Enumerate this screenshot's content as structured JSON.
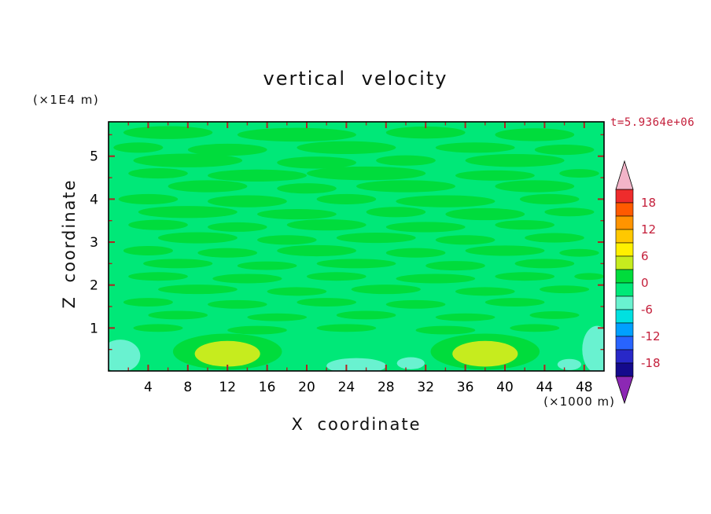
{
  "title": "vertical velocity",
  "time_label": "t=5.9364e+06",
  "axes": {
    "x_label": "X coordinate",
    "x_unit": "(×1000 m)",
    "z_label": "Z coordinate",
    "z_unit": "(×1E4 m)"
  },
  "colors": {
    "tick": "#B22222",
    "frame": "#000000",
    "tick_label": "#000000",
    "scale_label": "#C41E3A",
    "time_label": "#C41E3A",
    "title": "#111111"
  },
  "chart_data": {
    "type": "heatmap",
    "title": "vertical velocity",
    "xlabel": "X coordinate (×1000 m)",
    "ylabel": "Z coordinate (×1E4 m)",
    "time": "t=5.9364e+06",
    "x_range": [
      0,
      50
    ],
    "z_range": [
      0,
      5.8
    ],
    "x_ticks": [
      4,
      8,
      12,
      16,
      20,
      24,
      28,
      32,
      36,
      40,
      44,
      48
    ],
    "x_minor_ticks": [
      2,
      6,
      10,
      14,
      18,
      22,
      26,
      30,
      34,
      38,
      42,
      46
    ],
    "z_ticks": [
      1,
      2,
      3,
      4,
      5
    ],
    "z_minor_ticks": [
      0.5,
      1.5,
      2.5,
      3.5,
      4.5,
      5.5
    ],
    "contour_interval": 3,
    "background_value": -1.5,
    "colorbar": {
      "labels": [
        18,
        12,
        6,
        0,
        -6,
        -12,
        -18
      ],
      "value_max": 21,
      "value_min": -21,
      "over_color": "#F2B4C8",
      "under_color": "#8C28B4",
      "levels": [
        {
          "min": 18,
          "max": 21,
          "color": "#EE2C2C"
        },
        {
          "min": 15,
          "max": 18,
          "color": "#FF5A00"
        },
        {
          "min": 12,
          "max": 15,
          "color": "#FF9400"
        },
        {
          "min": 9,
          "max": 12,
          "color": "#FFC800"
        },
        {
          "min": 6,
          "max": 9,
          "color": "#FFF000"
        },
        {
          "min": 3,
          "max": 6,
          "color": "#C6EC1E"
        },
        {
          "min": 0,
          "max": 3,
          "color": "#00DC3C"
        },
        {
          "min": -3,
          "max": 0,
          "color": "#00E878"
        },
        {
          "min": -6,
          "max": -3,
          "color": "#69F2D0"
        },
        {
          "min": -9,
          "max": -6,
          "color": "#00E0E0"
        },
        {
          "min": -12,
          "max": -9,
          "color": "#00A0FF"
        },
        {
          "min": -15,
          "max": -12,
          "color": "#2864FF"
        },
        {
          "min": -18,
          "max": -15,
          "color": "#2828C8"
        },
        {
          "min": -21,
          "max": -18,
          "color": "#140A8C"
        }
      ]
    },
    "blobs": [
      [
        6,
        5.55,
        4.5,
        0.15,
        1.5
      ],
      [
        19,
        5.5,
        6,
        0.16,
        1.5
      ],
      [
        32,
        5.55,
        4,
        0.14,
        1.5
      ],
      [
        43,
        5.5,
        4,
        0.15,
        1.5
      ],
      [
        3,
        5.2,
        2.5,
        0.12,
        1.5
      ],
      [
        12,
        5.15,
        4,
        0.14,
        1.5
      ],
      [
        24,
        5.2,
        5,
        0.15,
        1.5
      ],
      [
        37,
        5.2,
        4,
        0.12,
        1.5
      ],
      [
        46,
        5.15,
        3,
        0.12,
        1.5
      ],
      [
        8,
        4.9,
        5.5,
        0.16,
        1.5
      ],
      [
        21,
        4.85,
        4,
        0.14,
        1.5
      ],
      [
        30,
        4.9,
        3,
        0.12,
        1.5
      ],
      [
        41,
        4.9,
        5,
        0.15,
        1.5
      ],
      [
        5,
        4.6,
        3,
        0.12,
        1.5
      ],
      [
        15,
        4.55,
        5,
        0.14,
        1.5
      ],
      [
        26,
        4.6,
        6,
        0.16,
        1.5
      ],
      [
        39,
        4.55,
        4,
        0.12,
        1.5
      ],
      [
        47.5,
        4.6,
        2,
        0.1,
        1.5
      ],
      [
        10,
        4.3,
        4,
        0.14,
        1.5
      ],
      [
        20,
        4.25,
        3,
        0.12,
        1.5
      ],
      [
        30,
        4.3,
        5,
        0.14,
        1.5
      ],
      [
        43,
        4.3,
        4,
        0.14,
        1.5
      ],
      [
        4,
        4.0,
        3,
        0.12,
        1.5
      ],
      [
        14,
        3.95,
        4,
        0.14,
        1.5
      ],
      [
        24,
        4.0,
        3,
        0.12,
        1.5
      ],
      [
        34,
        3.95,
        5,
        0.14,
        1.5
      ],
      [
        44.5,
        4.0,
        3,
        0.12,
        1.5
      ],
      [
        8,
        3.7,
        5,
        0.14,
        1.5
      ],
      [
        19,
        3.65,
        4,
        0.12,
        1.5
      ],
      [
        29,
        3.7,
        3,
        0.12,
        1.5
      ],
      [
        38,
        3.65,
        4,
        0.14,
        1.5
      ],
      [
        46.5,
        3.7,
        2.5,
        0.1,
        1.5
      ],
      [
        5,
        3.4,
        3,
        0.12,
        1.5
      ],
      [
        13,
        3.35,
        3,
        0.11,
        1.5
      ],
      [
        22,
        3.4,
        4,
        0.13,
        1.5
      ],
      [
        32,
        3.35,
        4,
        0.12,
        1.5
      ],
      [
        42,
        3.4,
        3,
        0.11,
        1.5
      ],
      [
        9,
        3.1,
        4,
        0.13,
        1.5
      ],
      [
        18,
        3.05,
        3,
        0.11,
        1.5
      ],
      [
        27,
        3.1,
        4,
        0.12,
        1.5
      ],
      [
        36,
        3.05,
        3,
        0.11,
        1.5
      ],
      [
        45,
        3.1,
        3,
        0.11,
        1.5
      ],
      [
        4,
        2.8,
        2.5,
        0.11,
        1.5
      ],
      [
        12,
        2.75,
        3,
        0.11,
        1.5
      ],
      [
        21,
        2.8,
        4,
        0.13,
        1.5
      ],
      [
        31,
        2.75,
        3,
        0.11,
        1.5
      ],
      [
        40,
        2.8,
        4,
        0.12,
        1.5
      ],
      [
        47.5,
        2.75,
        2,
        0.09,
        1.5
      ],
      [
        7,
        2.5,
        3.5,
        0.11,
        1.5
      ],
      [
        16,
        2.45,
        3,
        0.1,
        1.5
      ],
      [
        25,
        2.5,
        4,
        0.11,
        1.5
      ],
      [
        35,
        2.45,
        3,
        0.11,
        1.5
      ],
      [
        44,
        2.5,
        3,
        0.11,
        1.5
      ],
      [
        5,
        2.2,
        3,
        0.1,
        1.5
      ],
      [
        14,
        2.15,
        3.5,
        0.11,
        1.5
      ],
      [
        23,
        2.2,
        3,
        0.1,
        1.5
      ],
      [
        33,
        2.15,
        4,
        0.11,
        1.5
      ],
      [
        42,
        2.2,
        3,
        0.1,
        1.5
      ],
      [
        48.5,
        2.2,
        1.5,
        0.08,
        1.5
      ],
      [
        9,
        1.9,
        4,
        0.11,
        1.5
      ],
      [
        19,
        1.85,
        3,
        0.1,
        1.5
      ],
      [
        28,
        1.9,
        3.5,
        0.11,
        1.5
      ],
      [
        38,
        1.85,
        3,
        0.1,
        1.5
      ],
      [
        46,
        1.9,
        2.5,
        0.09,
        1.5
      ],
      [
        4,
        1.6,
        2.5,
        0.1,
        1.5
      ],
      [
        13,
        1.55,
        3,
        0.1,
        1.5
      ],
      [
        22,
        1.6,
        3,
        0.1,
        1.5
      ],
      [
        31,
        1.55,
        3,
        0.1,
        1.5
      ],
      [
        41,
        1.6,
        3,
        0.1,
        1.5
      ],
      [
        7,
        1.3,
        3,
        0.1,
        1.5
      ],
      [
        17,
        1.25,
        3,
        0.09,
        1.5
      ],
      [
        26,
        1.3,
        3,
        0.1,
        1.5
      ],
      [
        36,
        1.25,
        3,
        0.09,
        1.5
      ],
      [
        45,
        1.3,
        2.5,
        0.09,
        1.5
      ],
      [
        5,
        1.0,
        2.5,
        0.09,
        1.5
      ],
      [
        15,
        0.95,
        3,
        0.1,
        1.5
      ],
      [
        24,
        1.0,
        3,
        0.09,
        1.5
      ],
      [
        34,
        0.95,
        3,
        0.1,
        1.5
      ],
      [
        43,
        1.0,
        2.5,
        0.09,
        1.5
      ],
      [
        12,
        0.45,
        5.5,
        0.42,
        1.5
      ],
      [
        38,
        0.45,
        5.5,
        0.42,
        1.5
      ],
      [
        12,
        0.4,
        3.3,
        0.3,
        4.5
      ],
      [
        38,
        0.4,
        3.3,
        0.3,
        4.5
      ],
      [
        1.2,
        0.35,
        2.0,
        0.38,
        -4.5
      ],
      [
        25,
        0.12,
        3,
        0.18,
        -4.5
      ],
      [
        30.5,
        0.18,
        1.4,
        0.14,
        -4.5
      ],
      [
        49.3,
        0.5,
        1.5,
        0.55,
        -4.5
      ],
      [
        46.5,
        0.15,
        1.2,
        0.13,
        -4.5
      ]
    ]
  }
}
